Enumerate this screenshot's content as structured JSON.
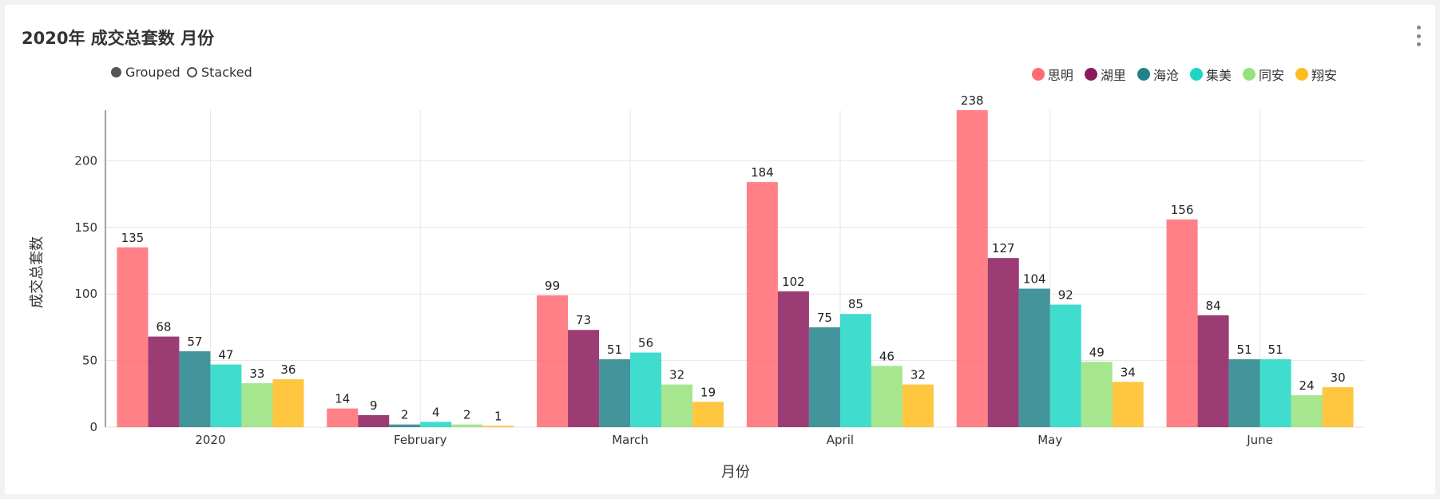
{
  "header": {
    "title": "2020年 成交总套数 月份",
    "menu_icon": "kebab-menu-icon"
  },
  "mode_toggle": [
    {
      "label": "Grouped",
      "selected": true
    },
    {
      "label": "Stacked",
      "selected": false
    }
  ],
  "chart_data": {
    "type": "bar",
    "title": "2020年 成交总套数 月份",
    "xlabel": "月份",
    "ylabel": "成交总套数",
    "ylim": [
      0,
      238
    ],
    "yticks": [
      0,
      50,
      100,
      150,
      200
    ],
    "grid": true,
    "legend_position": "top-right",
    "mode": "grouped",
    "categories": [
      "2020",
      "February",
      "March",
      "April",
      "May",
      "June"
    ],
    "series": [
      {
        "name": "思明",
        "color": "#ff6b72",
        "values": [
          135,
          14,
          99,
          184,
          238,
          156
        ]
      },
      {
        "name": "湖里",
        "color": "#8b1a5c",
        "values": [
          68,
          9,
          73,
          102,
          127,
          84
        ]
      },
      {
        "name": "海沧",
        "color": "#23818a",
        "values": [
          57,
          2,
          51,
          75,
          104,
          51
        ]
      },
      {
        "name": "集美",
        "color": "#1ed6c4",
        "values": [
          47,
          4,
          56,
          85,
          92,
          51
        ]
      },
      {
        "name": "同安",
        "color": "#97e27a",
        "values": [
          33,
          2,
          32,
          46,
          49,
          24
        ]
      },
      {
        "name": "翔安",
        "color": "#ffbc1f",
        "values": [
          36,
          1,
          19,
          32,
          34,
          30
        ]
      }
    ]
  }
}
